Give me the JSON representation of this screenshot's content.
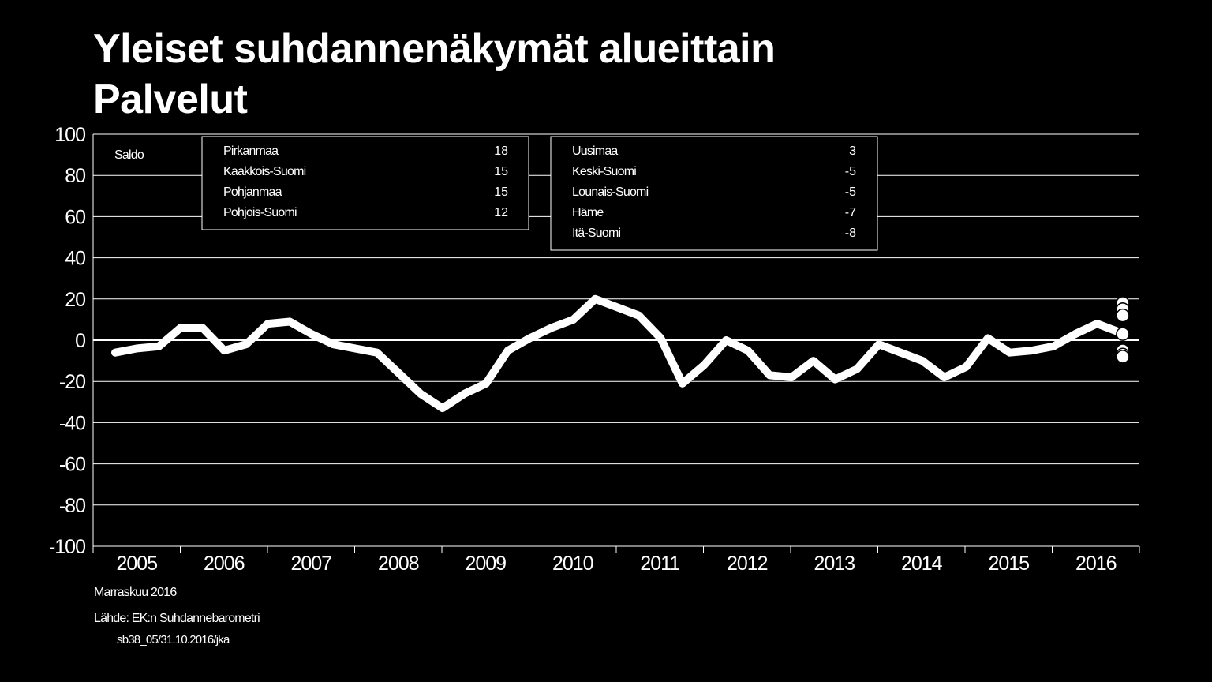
{
  "title": {
    "line1": "Yleiset suhdannenäkymät alueittain",
    "line2": "Palvelut"
  },
  "chart_data": {
    "type": "line",
    "title": "Yleiset suhdannenäkymät alueittain Palvelut",
    "ylabel": "Saldo",
    "ylim": [
      -100,
      100
    ],
    "yticks": [
      100,
      80,
      60,
      40,
      20,
      0,
      -20,
      -40,
      -60,
      -80,
      -100
    ],
    "ytick_labels": [
      "100",
      "80",
      "60",
      "40",
      "20",
      "0",
      "-20",
      "-40",
      "-60",
      "-80",
      "-100"
    ],
    "year_labels": [
      "2005",
      "2006",
      "2007",
      "2008",
      "2009",
      "2010",
      "2011",
      "2012",
      "2013",
      "2014",
      "2015",
      "2016"
    ],
    "grid": true,
    "series": [
      {
        "values": [
          -6,
          -4,
          -3,
          6,
          6,
          -5,
          -2,
          8,
          9,
          3,
          -2,
          -4,
          -6,
          -16,
          -26,
          -33,
          -26,
          -21,
          -5,
          1,
          6,
          10,
          20,
          16,
          12,
          1,
          -21,
          -12,
          0,
          -5,
          -17,
          -18,
          -10,
          -19,
          -14,
          -2,
          -6,
          -10,
          -18,
          -13,
          1,
          -6,
          -5,
          -3,
          3,
          8,
          4
        ]
      }
    ],
    "latest_points": [
      18,
      15,
      15,
      12,
      3,
      -5,
      -5,
      -7,
      -8
    ],
    "legend_boxes": [
      {
        "entries": [
          {
            "region": "Pirkanmaa",
            "value": "18"
          },
          {
            "region": "Kaakkois-Suomi",
            "value": "15"
          },
          {
            "region": "Pohjanmaa",
            "value": "15"
          },
          {
            "region": "Pohjois-Suomi",
            "value": "12"
          }
        ]
      },
      {
        "entries": [
          {
            "region": "Uusimaa",
            "value": "3"
          },
          {
            "region": "Keski-Suomi",
            "value": "-5"
          },
          {
            "region": "Lounais-Suomi",
            "value": "-5"
          },
          {
            "region": "Häme",
            "value": "-7"
          },
          {
            "region": "Itä-Suomi",
            "value": "-8"
          }
        ]
      }
    ],
    "colors": {
      "background": "#000000",
      "line": "#ffffff",
      "grid": "#ffffff"
    }
  },
  "footer": {
    "date": "Marraskuu 2016",
    "source": "Lähde: EK:n Suhdannebarometri",
    "code": "sb38_05/31.10.2016/jka"
  }
}
